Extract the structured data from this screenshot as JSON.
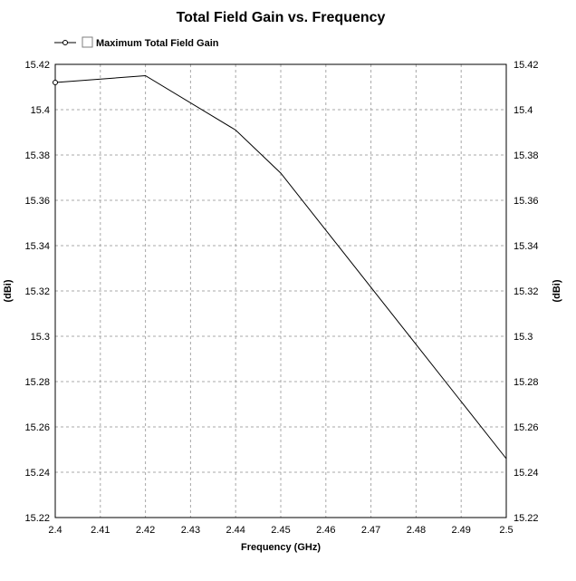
{
  "chart_data": {
    "type": "line",
    "title": "Total Field Gain vs. Frequency",
    "xlabel": "Frequency (GHz)",
    "ylabel": "(dBi)",
    "ylabel_right": "(dBi)",
    "xlim": [
      2.4,
      2.5
    ],
    "ylim": [
      15.22,
      15.42
    ],
    "x_ticks": [
      "2.4",
      "2.41",
      "2.42",
      "2.43",
      "2.44",
      "2.45",
      "2.46",
      "2.47",
      "2.48",
      "2.49",
      "2.5"
    ],
    "y_ticks": [
      "15.22",
      "15.24",
      "15.26",
      "15.28",
      "15.3",
      "15.32",
      "15.34",
      "15.36",
      "15.38",
      "15.4",
      "15.42"
    ],
    "grid": true,
    "legend_position": "top-left",
    "series": [
      {
        "name": "Maximum Total Field Gain",
        "color": "#000000",
        "x": [
          2.4,
          2.42,
          2.44,
          2.45,
          2.5
        ],
        "y": [
          15.412,
          15.415,
          15.391,
          15.372,
          15.246
        ]
      }
    ]
  }
}
